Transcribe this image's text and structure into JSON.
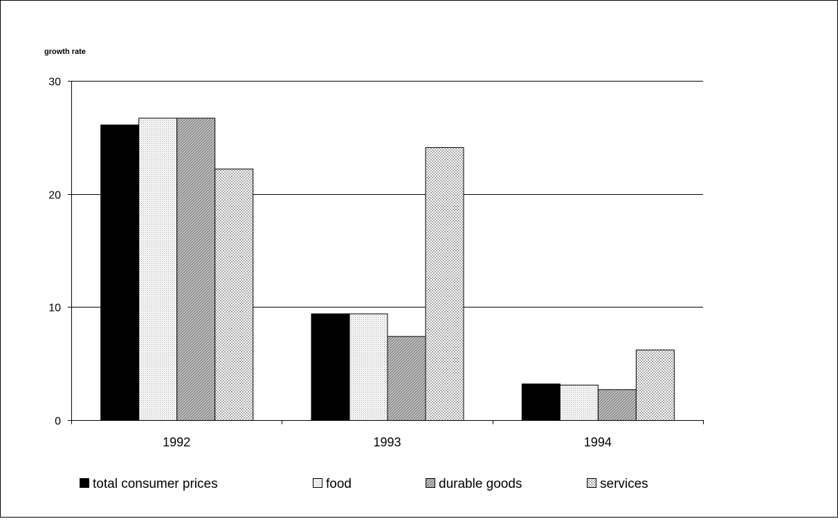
{
  "chart_data": {
    "type": "bar",
    "ylabel": "growth rate",
    "xlabel": "",
    "categories": [
      "1992",
      "1993",
      "1994"
    ],
    "ylim": [
      0,
      30
    ],
    "yticks": [
      "0",
      "10",
      "20",
      "30"
    ],
    "grid": true,
    "legend_position": "bottom",
    "series": [
      {
        "name": "total consumer prices",
        "values": [
          26.1,
          9.4,
          3.2
        ],
        "pattern": "solid"
      },
      {
        "name": "food",
        "values": [
          26.7,
          9.4,
          3.1
        ],
        "pattern": "fine-dots"
      },
      {
        "name": "durable goods",
        "values": [
          26.7,
          7.4,
          2.7
        ],
        "pattern": "diagonal"
      },
      {
        "name": "services",
        "values": [
          22.2,
          24.1,
          6.2
        ],
        "pattern": "checker"
      }
    ]
  }
}
